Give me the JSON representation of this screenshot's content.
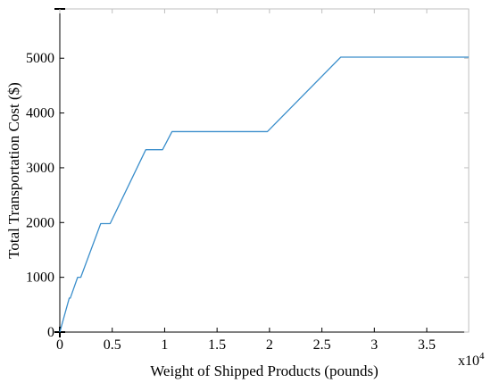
{
  "chart_data": {
    "type": "line",
    "title": "",
    "xlabel": "Weight of Shipped Products (pounds)",
    "ylabel": "Total Transportation Cost ($)",
    "x_multiplier": {
      "base": "x10",
      "exponent": "4"
    },
    "xlim": [
      0,
      3.9
    ],
    "ylim": [
      0,
      5900
    ],
    "x_ticks": [
      {
        "value": 0,
        "label": "0"
      },
      {
        "value": 0.5,
        "label": "0.5"
      },
      {
        "value": 1,
        "label": "1"
      },
      {
        "value": 1.5,
        "label": "1.5"
      },
      {
        "value": 2,
        "label": "2"
      },
      {
        "value": 2.5,
        "label": "2.5"
      },
      {
        "value": 3,
        "label": "3"
      },
      {
        "value": 3.5,
        "label": "3.5"
      }
    ],
    "y_ticks": [
      {
        "value": 0,
        "label": "0"
      },
      {
        "value": 1000,
        "label": "1000"
      },
      {
        "value": 2000,
        "label": "2000"
      },
      {
        "value": 3000,
        "label": "3000"
      },
      {
        "value": 4000,
        "label": "4000"
      },
      {
        "value": 5000,
        "label": "5000"
      }
    ],
    "grid": false,
    "series": [
      {
        "color": "#3a8ecb",
        "x": [
          0,
          0.09,
          0.1,
          0.17,
          0.2,
          0.39,
          0.48,
          0.82,
          0.98,
          1.07,
          1.98,
          2.68,
          3.9
        ],
        "y": [
          0,
          620,
          620,
          1000,
          1000,
          1980,
          1980,
          3330,
          3330,
          3660,
          3660,
          5020,
          5020
        ]
      }
    ]
  }
}
